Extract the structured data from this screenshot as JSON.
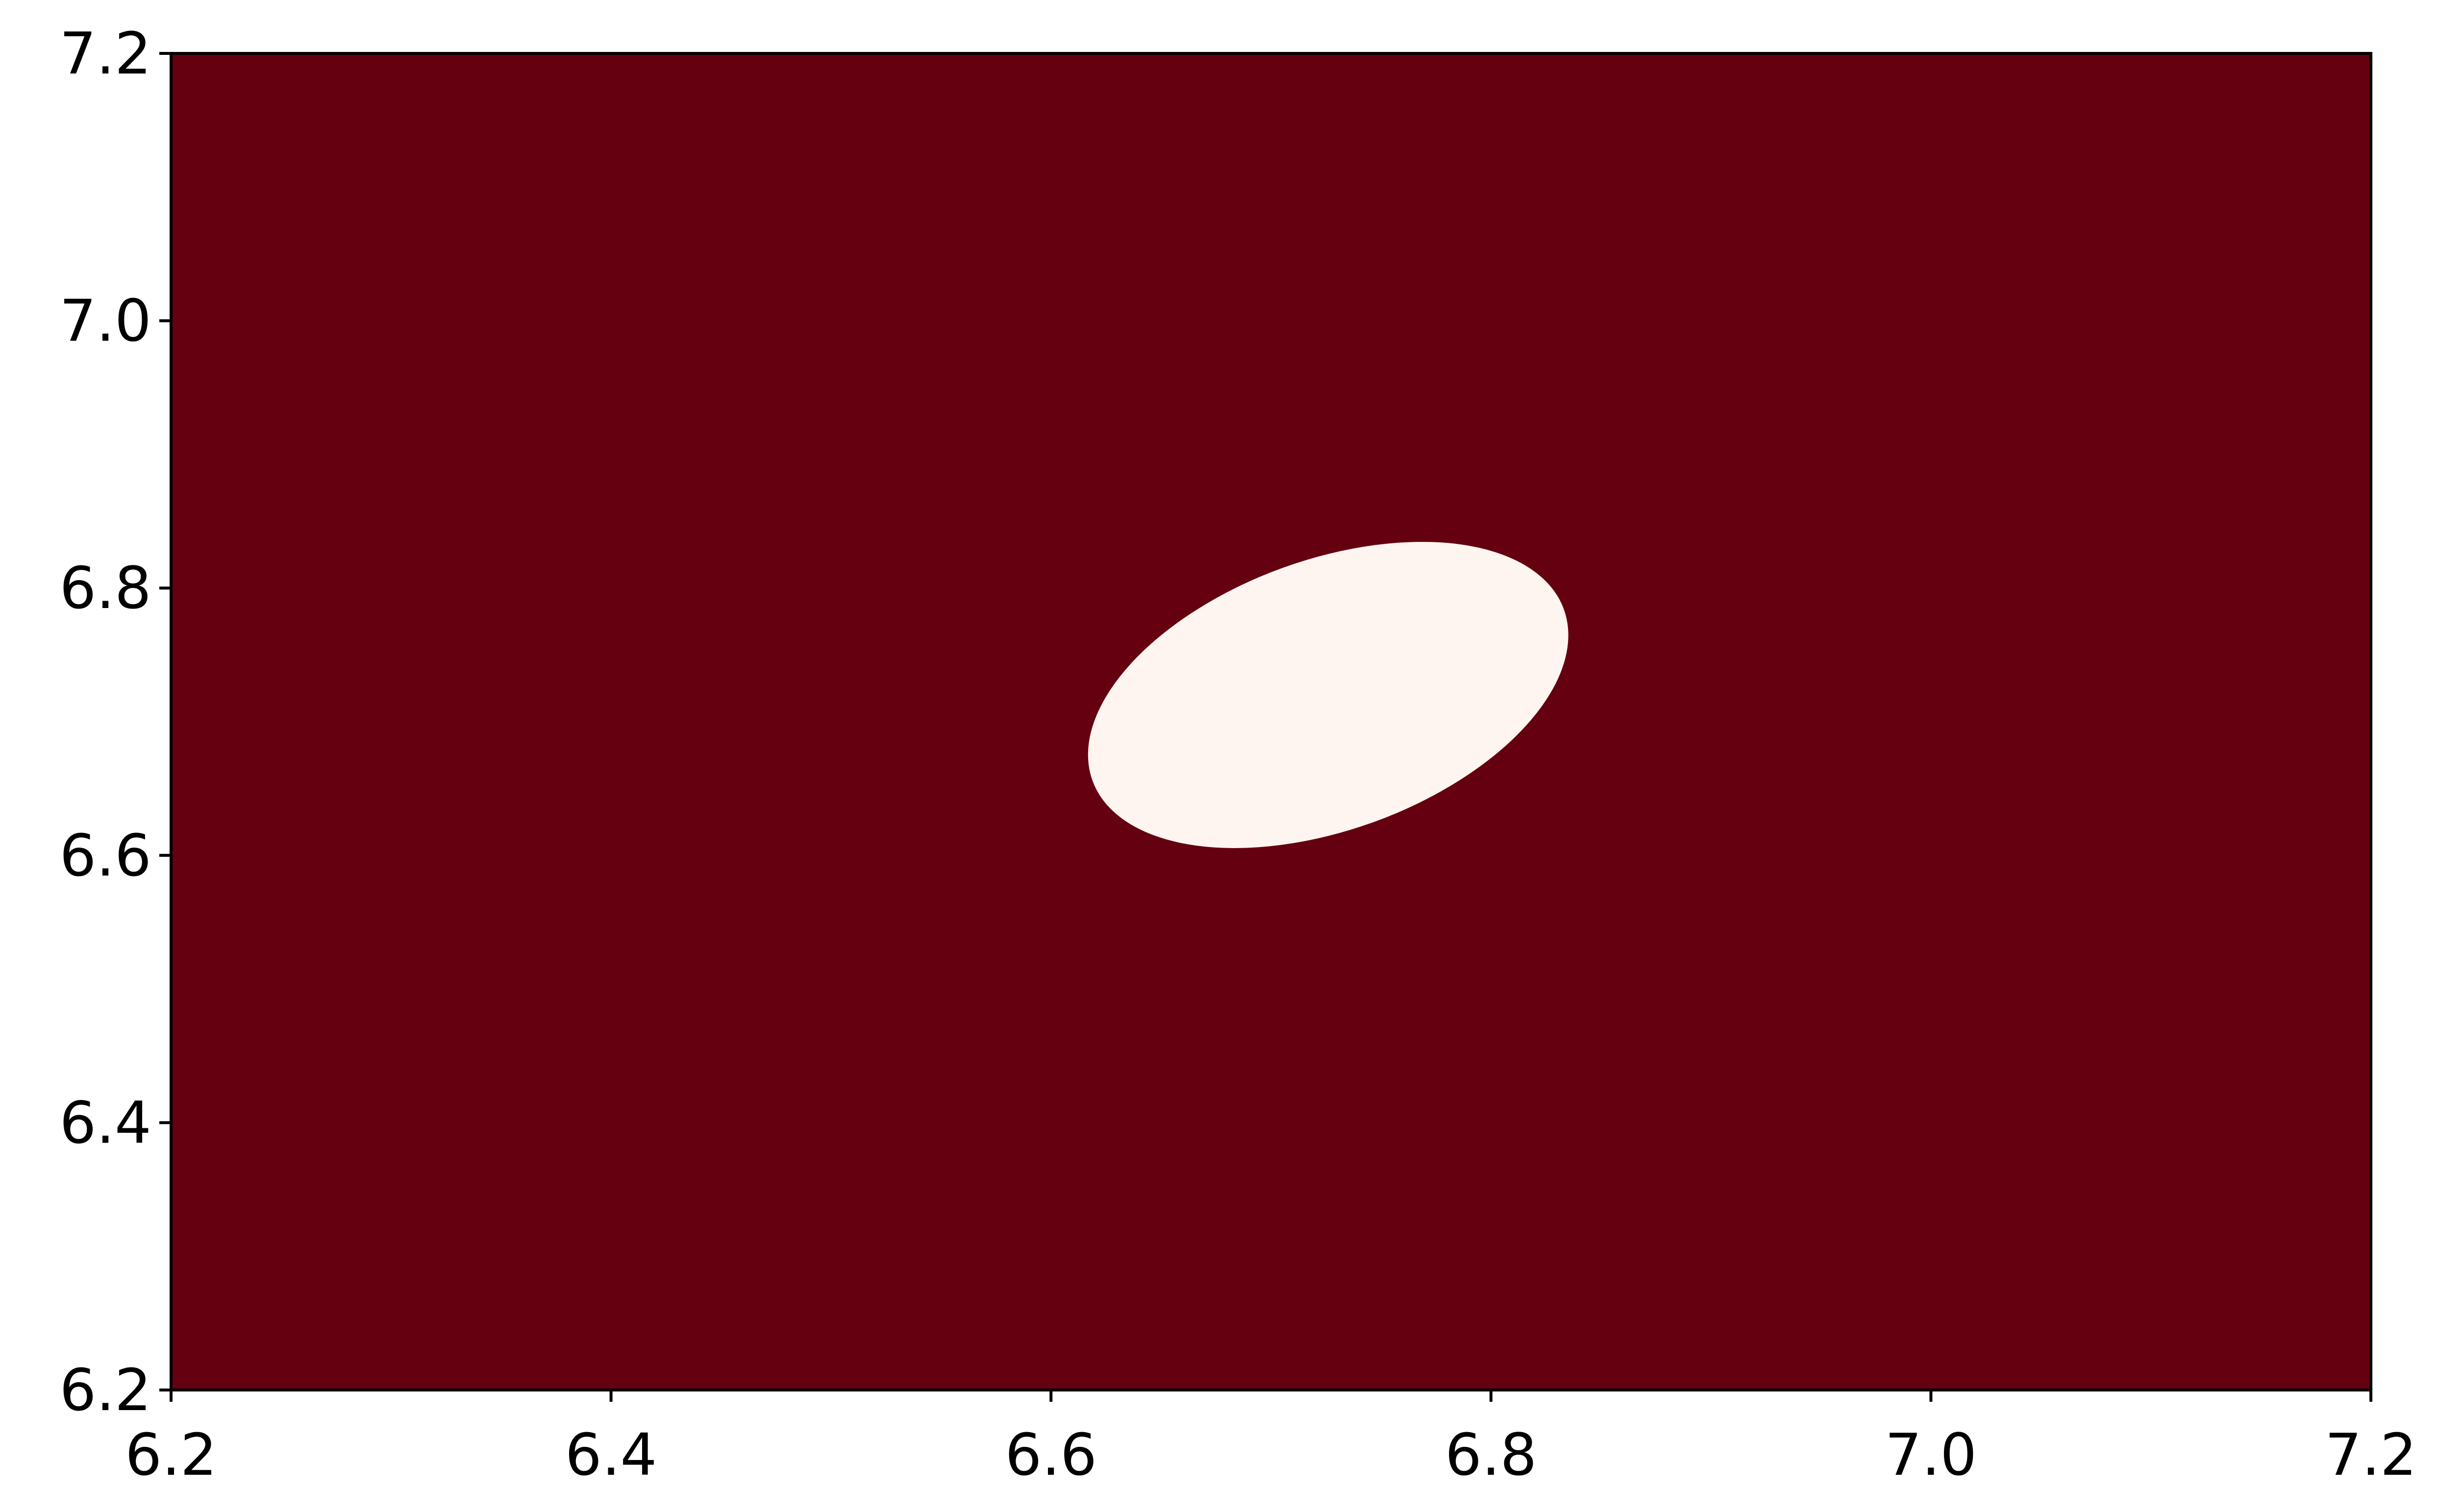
{
  "chart_data": {
    "type": "heatmap",
    "xlim": [
      6.2,
      7.2
    ],
    "ylim": [
      6.2,
      7.2
    ],
    "x_ticks": [
      "6.2",
      "6.4",
      "6.6",
      "6.8",
      "7.0",
      "7.2"
    ],
    "y_ticks": [
      "6.2",
      "6.4",
      "6.6",
      "6.8",
      "7.0",
      "7.2"
    ],
    "grid": false,
    "colors": {
      "background_region": "#64000f",
      "highlight_region": "#fff5f0",
      "axis": "#000000"
    },
    "regions": [
      {
        "class": "background",
        "fill": "#64000f",
        "extent": {
          "x": [
            6.2,
            7.2
          ],
          "y": [
            6.2,
            7.2
          ]
        }
      },
      {
        "class": "highlight",
        "shape": "ellipse",
        "fill": "#fff5f0",
        "center": {
          "x": 6.726,
          "y": 6.72
        },
        "semi_major": 0.114,
        "semi_minor": 0.101,
        "rotation_deg": 20
      }
    ]
  }
}
